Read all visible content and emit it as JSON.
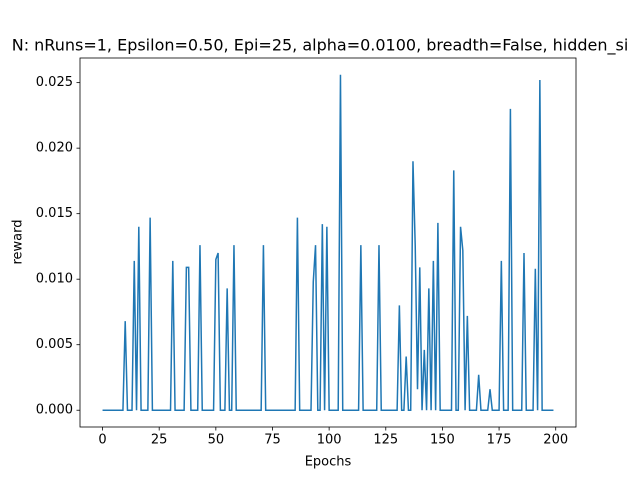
{
  "chart_data": {
    "type": "line",
    "title": "N: nRuns=1, Epsilon=0.50, Epi=25, alpha=0.0100, breadth=False, hidden_si",
    "x_label": "Epochs",
    "y_label": "reward",
    "x": [
      0,
      1,
      2,
      3,
      4,
      5,
      6,
      7,
      8,
      9,
      10,
      11,
      12,
      13,
      14,
      15,
      16,
      17,
      18,
      19,
      20,
      21,
      22,
      23,
      24,
      25,
      26,
      27,
      28,
      29,
      30,
      31,
      32,
      33,
      34,
      35,
      36,
      37,
      38,
      39,
      40,
      41,
      42,
      43,
      44,
      45,
      46,
      47,
      48,
      49,
      50,
      51,
      52,
      53,
      54,
      55,
      56,
      57,
      58,
      59,
      60,
      61,
      62,
      63,
      64,
      65,
      66,
      67,
      68,
      69,
      70,
      71,
      72,
      73,
      74,
      75,
      76,
      77,
      78,
      79,
      80,
      81,
      82,
      83,
      84,
      85,
      86,
      87,
      88,
      89,
      90,
      91,
      92,
      93,
      94,
      95,
      96,
      97,
      98,
      99,
      100,
      101,
      102,
      103,
      104,
      105,
      106,
      107,
      108,
      109,
      110,
      111,
      112,
      113,
      114,
      115,
      116,
      117,
      118,
      119,
      120,
      121,
      122,
      123,
      124,
      125,
      126,
      127,
      128,
      129,
      130,
      131,
      132,
      133,
      134,
      135,
      136,
      137,
      138,
      139,
      140,
      141,
      142,
      143,
      144,
      145,
      146,
      147,
      148,
      149,
      150,
      151,
      152,
      153,
      154,
      155,
      156,
      157,
      158,
      159,
      160,
      161,
      162,
      163,
      164,
      165,
      166,
      167,
      168,
      169,
      170,
      171,
      172,
      173,
      174,
      175,
      176,
      177,
      178,
      179,
      180,
      181,
      182,
      183,
      184,
      185,
      186,
      187,
      188,
      189,
      190,
      191,
      192,
      193,
      194,
      195,
      196,
      197,
      198,
      199
    ],
    "series": [
      {
        "name": "reward",
        "color": "#1f77b4",
        "values": [
          0,
          0,
          0,
          0,
          0,
          0,
          0,
          0,
          0,
          0,
          0.0068,
          0,
          0,
          0,
          0.0114,
          0,
          0.014,
          0,
          0,
          0,
          0,
          0.0147,
          0,
          0,
          0,
          0,
          0,
          0,
          0,
          0,
          0,
          0.0114,
          0,
          0,
          0,
          0,
          0,
          0.0109,
          0.0109,
          0,
          0,
          0,
          0,
          0.0126,
          0,
          0,
          0,
          0,
          0,
          0,
          0.0115,
          0.012,
          0,
          0,
          0,
          0.0093,
          0,
          0,
          0.0126,
          0,
          0,
          0,
          0,
          0,
          0,
          0,
          0,
          0,
          0,
          0,
          0,
          0.0126,
          0,
          0,
          0,
          0,
          0,
          0,
          0,
          0,
          0,
          0,
          0,
          0,
          0,
          0,
          0.0147,
          0,
          0,
          0,
          0,
          0,
          0,
          0.0098,
          0.0126,
          0,
          0,
          0.0142,
          0,
          0.014,
          0,
          0,
          0,
          0,
          0,
          0.0256,
          0,
          0,
          0,
          0,
          0,
          0,
          0,
          0,
          0.0126,
          0,
          0,
          0,
          0,
          0,
          0,
          0,
          0.0126,
          0,
          0,
          0,
          0,
          0,
          0,
          0,
          0,
          0.008,
          0,
          0,
          0.0041,
          0,
          0,
          0.019,
          0.0125,
          0.0016,
          0.0109,
          0,
          0.0046,
          0,
          0.0093,
          0,
          0.0114,
          0,
          0.0143,
          0,
          0,
          0,
          0,
          0,
          0,
          0.0183,
          0,
          0,
          0.014,
          0.0122,
          0,
          0.0072,
          0,
          0,
          0,
          0,
          0.0027,
          0,
          0,
          0,
          0,
          0.0016,
          0,
          0,
          0,
          0,
          0.0114,
          0,
          0,
          0,
          0.023,
          0,
          0,
          0,
          0,
          0,
          0.012,
          0,
          0,
          0,
          0,
          0.0108,
          0,
          0.0252,
          0,
          0,
          0,
          0,
          0,
          0
        ]
      }
    ],
    "xlim": [
      -9.95,
      208.95
    ],
    "xticks": [
      0,
      25,
      50,
      75,
      100,
      125,
      150,
      175,
      200
    ],
    "ylim": [
      -0.00128,
      0.02688
    ],
    "yticks": [
      {
        "value": 0,
        "label": "0.000"
      },
      {
        "value": 0.005,
        "label": "0.005"
      },
      {
        "value": 0.01,
        "label": "0.010"
      },
      {
        "value": 0.015,
        "label": "0.015"
      },
      {
        "value": 0.02,
        "label": "0.020"
      },
      {
        "value": 0.025,
        "label": "0.025"
      }
    ],
    "grid": false
  }
}
